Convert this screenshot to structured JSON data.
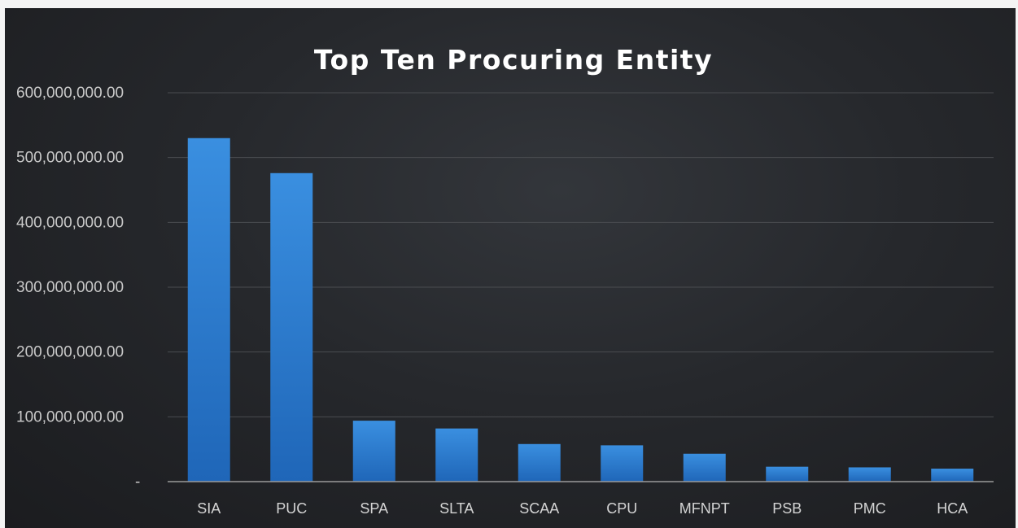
{
  "chart_data": {
    "type": "bar",
    "title": "Top Ten Procuring Entity",
    "xlabel": "",
    "ylabel": "",
    "categories": [
      "SIA",
      "PUC",
      "SPA",
      "SLTA",
      "SCAA",
      "CPU",
      "MFNPT",
      "PSB",
      "PMC",
      "HCA"
    ],
    "values": [
      530000000,
      476000000,
      94000000,
      82000000,
      58000000,
      56000000,
      43000000,
      23000000,
      22000000,
      20000000
    ],
    "ylim": [
      0,
      600000000
    ],
    "yticks": [
      {
        "value": 0,
        "label": "-"
      },
      {
        "value": 100000000,
        "label": "100,000,000.00"
      },
      {
        "value": 200000000,
        "label": "200,000,000.00"
      },
      {
        "value": 300000000,
        "label": "300,000,000.00"
      },
      {
        "value": 400000000,
        "label": "400,000,000.00"
      },
      {
        "value": 500000000,
        "label": "500,000,000.00"
      },
      {
        "value": 600000000,
        "label": "600,000,000.00"
      }
    ],
    "grid": true,
    "legend": "none",
    "colors": {
      "background": "#26282c",
      "bar_top": "#3a8fe0",
      "bar_bottom": "#1f66b8",
      "gridline": "#4a4c50",
      "text": "#c9c9c9"
    }
  }
}
